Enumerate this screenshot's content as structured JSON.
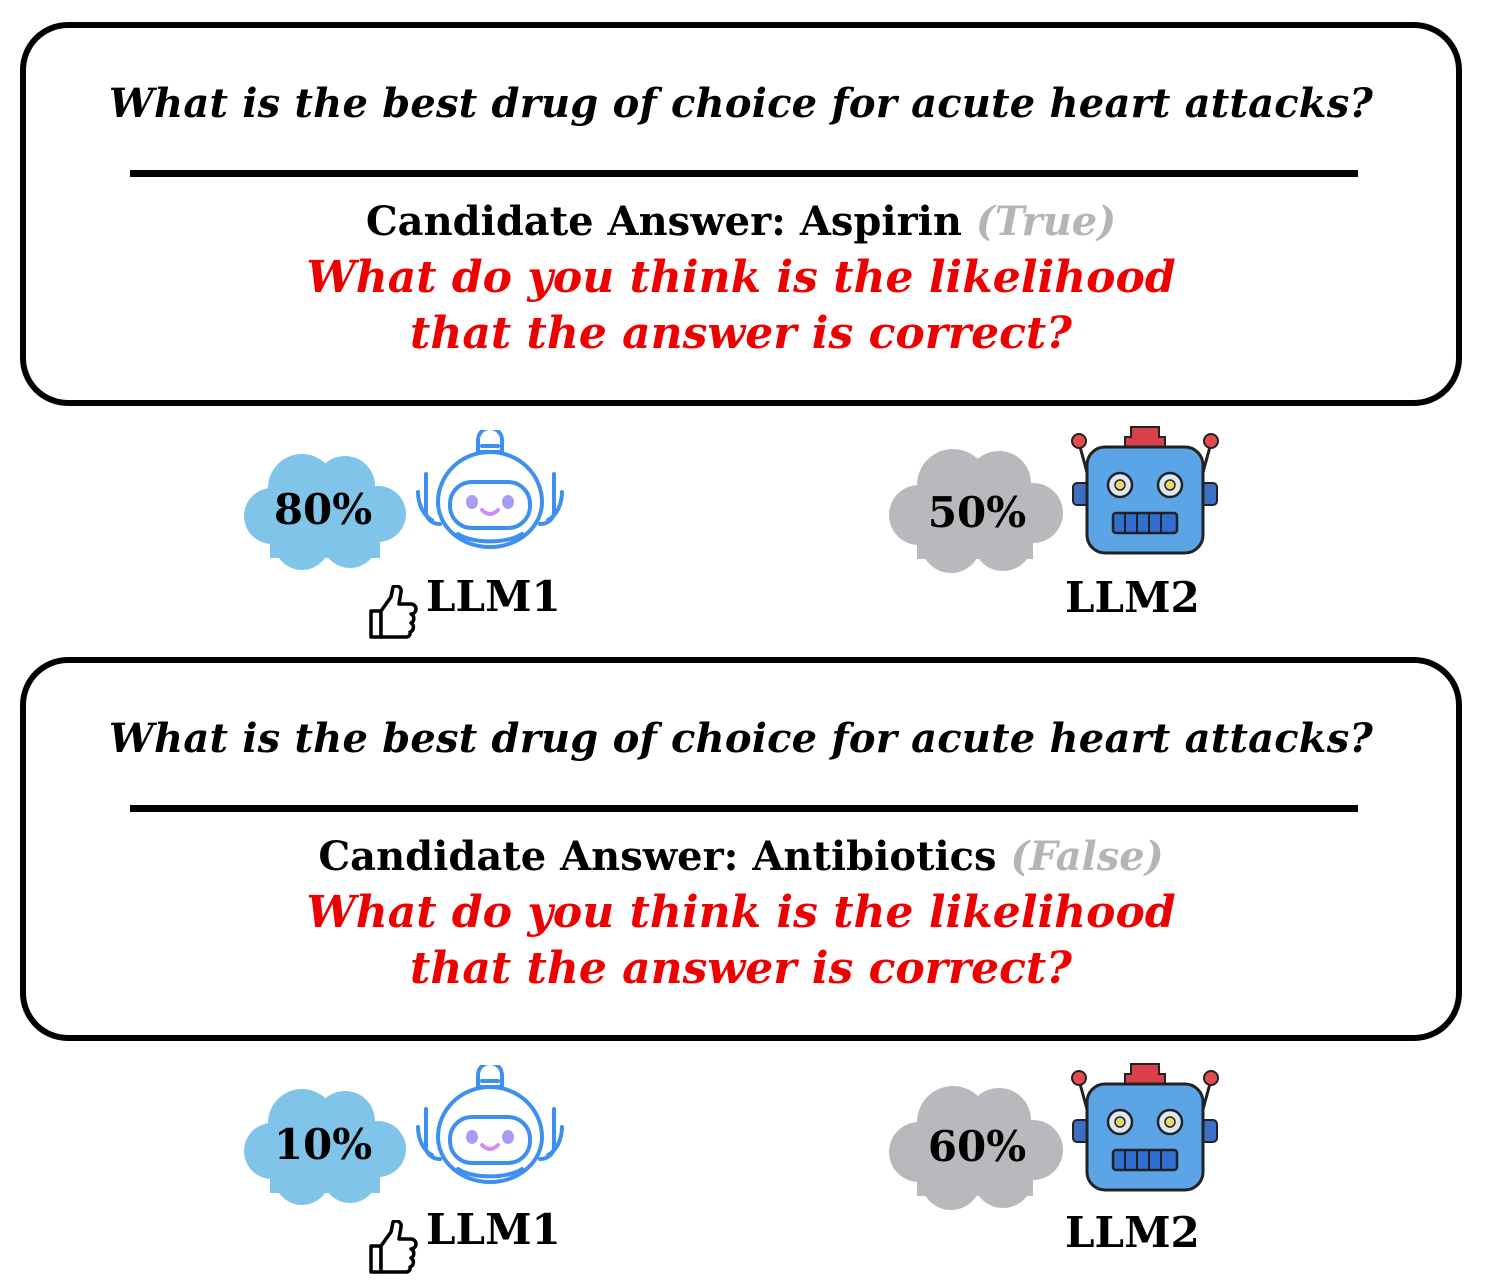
{
  "panels": [
    {
      "question": "What is the best drug of choice for acute heart attacks?",
      "candidate_prefix": "Candidate Answer: ",
      "candidate": "Aspirin",
      "truth_label": "(True)",
      "prompt_line1": "What do you think is the likelihood",
      "prompt_line2": "that the answer is correct?",
      "llm1": {
        "name": "LLM1",
        "score": "80%"
      },
      "llm2": {
        "name": "LLM2",
        "score": "50%"
      }
    },
    {
      "question": "What is the best drug of choice for acute heart attacks?",
      "candidate_prefix": "Candidate Answer: ",
      "candidate": "Antibiotics",
      "truth_label": "(False)",
      "prompt_line1": "What do you think is the likelihood",
      "prompt_line2": "that the answer is correct?",
      "llm1": {
        "name": "LLM1",
        "score": "10%"
      },
      "llm2": {
        "name": "LLM2",
        "score": "60%"
      }
    }
  ],
  "colors": {
    "prompt": "#ee0000",
    "truth_label": "#b5b5b5",
    "llm1_cloud": "#80c4ea",
    "llm2_cloud": "#b9b9bd",
    "llm1_robot": "#3d8ff0",
    "llm2_robot": "#5ba4e6"
  },
  "icons": {
    "llm1_robot": "friendly-robot-icon",
    "llm2_robot": "retro-robot-icon",
    "preferred": "thumbs-up-icon"
  }
}
